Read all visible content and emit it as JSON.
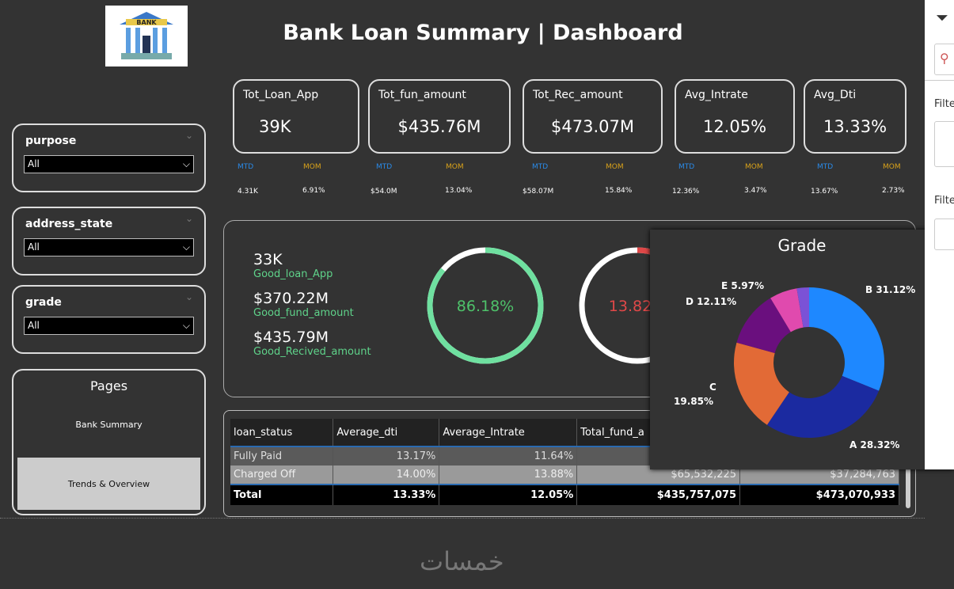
{
  "header": {
    "title": "Bank Loan Summary | Dashboard",
    "logo_text": "BANK"
  },
  "kpis": [
    {
      "label": "Tot_Loan_App",
      "value": "39K",
      "mtd_label": "MTD",
      "mom_label": "MOM",
      "mtd": "4.31K",
      "mom": "6.91%"
    },
    {
      "label": "Tot_fun_amount",
      "value": "$435.76M",
      "mtd_label": "MTD",
      "mom_label": "MOM",
      "mtd": "$54.0M",
      "mom": "13.04%"
    },
    {
      "label": "Tot_Rec_amount",
      "value": "$473.07M",
      "mtd_label": "MTD",
      "mom_label": "MOM",
      "mtd": "$58.07M",
      "mom": "15.84%"
    },
    {
      "label": "Avg_Intrate",
      "value": "12.05%",
      "mtd_label": "MTD",
      "mom_label": "MOM",
      "mtd": "12.36%",
      "mom": "3.47%"
    },
    {
      "label": "Avg_Dti",
      "value": "13.33%",
      "mtd_label": "MTD",
      "mom_label": "MOM",
      "mtd": "13.67%",
      "mom": "2.73%"
    }
  ],
  "slicers": [
    {
      "label": "purpose",
      "value": "All"
    },
    {
      "label": "address_state",
      "value": "All"
    },
    {
      "label": "grade",
      "value": "All"
    }
  ],
  "pages": {
    "title": "Pages",
    "items": [
      "Bank Summary",
      "Trends & Overview"
    ]
  },
  "good": {
    "apps": "33K",
    "apps_label": "Good_loan_App",
    "fund": "$370.22M",
    "fund_label": "Good_fund_amount",
    "recv": "$435.79M",
    "recv_label": "Good_Recived_amount",
    "good_pct": "86.18%",
    "good_value": 86.18,
    "bad_pct": "13.82%",
    "bad_value": 13.82
  },
  "table": {
    "headers": [
      "loan_status",
      "Average_dti",
      "Average_Intrate",
      "Total_fund_a",
      ""
    ],
    "rows": [
      [
        "Fully Paid",
        "13.17%",
        "11.64%",
        "",
        ""
      ],
      [
        "Charged Off",
        "14.00%",
        "13.88%",
        "$65,532,225",
        "$37,284,763"
      ]
    ],
    "total": [
      "Total",
      "13.33%",
      "12.05%",
      "$435,757,075",
      "$473,070,933"
    ]
  },
  "chart_data": {
    "type": "pie",
    "title": "Grade",
    "donut": true,
    "slices": [
      {
        "label": "B 31.12%",
        "value": 31.12,
        "color": "#1e88ff"
      },
      {
        "label": "A 28.32%",
        "value": 28.32,
        "color": "#1b2aa0"
      },
      {
        "label": "C 19.85%",
        "value": 19.85,
        "color": "#e26a36"
      },
      {
        "label": "D 12.11%",
        "value": 12.11,
        "color": "#6a0f7e"
      },
      {
        "label": "E 5.97%",
        "value": 5.97,
        "color": "#e04aae"
      },
      {
        "label": "",
        "value": 2.63,
        "color": "#7b52d6"
      }
    ]
  },
  "filters": {
    "label1": "Filte",
    "label2": "Filte"
  },
  "watermark": "خمسات"
}
